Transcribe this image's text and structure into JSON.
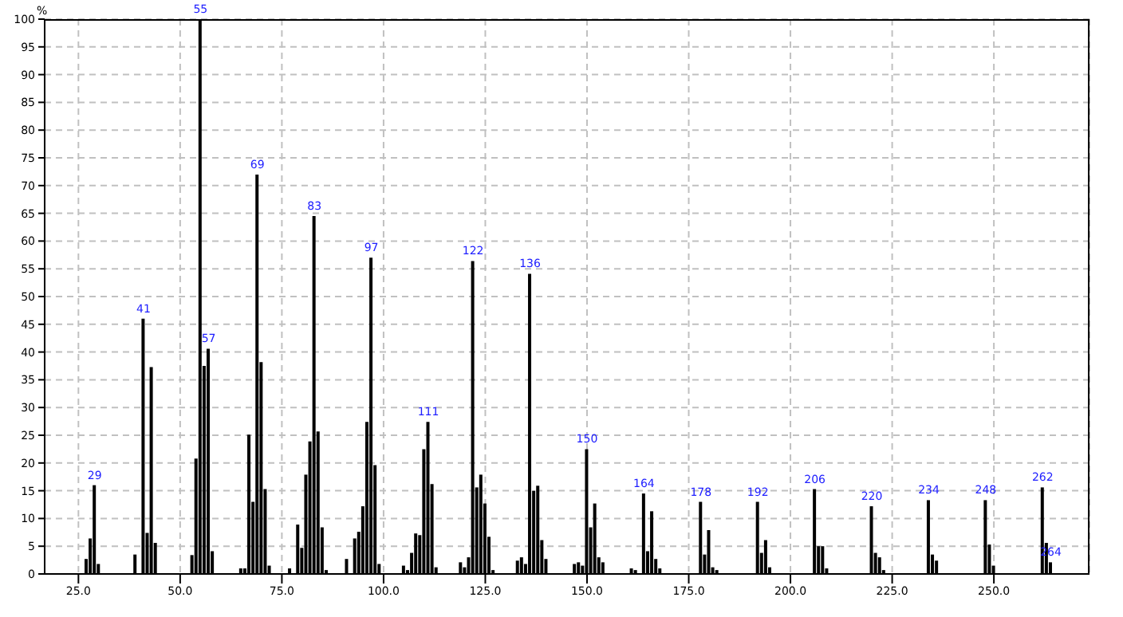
{
  "chart_data": {
    "type": "bar",
    "ylabel": "%",
    "x": [
      27,
      28,
      29,
      30,
      39,
      41,
      42,
      43,
      44,
      53,
      54,
      55,
      56,
      57,
      58,
      65,
      66,
      67,
      68,
      69,
      70,
      71,
      72,
      77,
      79,
      80,
      81,
      82,
      83,
      84,
      85,
      86,
      91,
      93,
      94,
      95,
      96,
      97,
      98,
      99,
      105,
      106,
      107,
      108,
      109,
      110,
      111,
      112,
      113,
      119,
      120,
      121,
      122,
      123,
      124,
      125,
      126,
      127,
      133,
      134,
      135,
      136,
      137,
      138,
      139,
      140,
      147,
      148,
      149,
      150,
      151,
      152,
      153,
      154,
      161,
      162,
      164,
      165,
      166,
      167,
      168,
      178,
      179,
      180,
      181,
      182,
      192,
      193,
      194,
      195,
      206,
      207,
      208,
      209,
      220,
      221,
      222,
      223,
      234,
      235,
      236,
      248,
      249,
      250,
      262,
      263,
      264
    ],
    "series": [
      {
        "color": "#000000",
        "values": [
          2.7,
          6.4,
          16,
          1.8,
          3.5,
          46,
          7.4,
          37.3,
          5.6,
          3.4,
          20.8,
          100,
          37.5,
          40.6,
          4.1,
          1,
          1,
          25.1,
          13,
          72,
          38.2,
          15.3,
          1.5,
          1,
          8.9,
          4.7,
          17.9,
          23.9,
          64.5,
          25.7,
          8.4,
          0.7,
          2.7,
          6.4,
          7.6,
          12.2,
          27.4,
          57,
          19.6,
          1.8,
          1.5,
          0.7,
          3.8,
          7.3,
          7,
          22.5,
          27.4,
          16.2,
          1.2,
          2.1,
          1.2,
          3,
          56.4,
          15.6,
          17.9,
          12.7,
          6.7,
          0.7,
          2.4,
          3,
          1.8,
          54.1,
          15,
          15.9,
          6.1,
          2.7,
          1.8,
          2.1,
          1.5,
          22.5,
          8.4,
          12.7,
          3,
          2.1,
          1,
          0.7,
          14.5,
          4.1,
          11.3,
          2.7,
          1,
          13,
          3.5,
          7.9,
          1.2,
          0.7,
          13,
          3.8,
          6.1,
          1.2,
          15.3,
          5,
          5,
          1,
          12.2,
          3.8,
          3,
          0.7,
          13.3,
          3.5,
          2.4,
          13.3,
          5.3,
          1.5,
          15.6,
          5.6,
          2.1
        ]
      }
    ],
    "xlim": [
      16.7,
      273.5
    ],
    "xticks": [
      {
        "value": 25,
        "label": "25.0"
      },
      {
        "value": 50,
        "label": "50.0"
      },
      {
        "value": 75,
        "label": "75.0"
      },
      {
        "value": 100,
        "label": "100.0"
      },
      {
        "value": 125,
        "label": "125.0"
      },
      {
        "value": 150,
        "label": "150.0"
      },
      {
        "value": 175,
        "label": "175.0"
      },
      {
        "value": 200,
        "label": "200.0"
      },
      {
        "value": 225,
        "label": "225.0"
      },
      {
        "value": 250,
        "label": "250.0"
      }
    ],
    "ylim": [
      0,
      100
    ],
    "yticks": [
      0,
      5,
      10,
      15,
      20,
      25,
      30,
      35,
      40,
      45,
      50,
      55,
      60,
      65,
      70,
      75,
      80,
      85,
      90,
      95,
      100
    ],
    "grid": true,
    "legend": false,
    "annotations": [
      {
        "text": "29",
        "x": 29,
        "y": 16
      },
      {
        "text": "41",
        "x": 41,
        "y": 46
      },
      {
        "text": "55",
        "x": 55,
        "y": 100
      },
      {
        "text": "57",
        "x": 57,
        "y": 40.6
      },
      {
        "text": "69",
        "x": 69,
        "y": 72
      },
      {
        "text": "83",
        "x": 83,
        "y": 64.5
      },
      {
        "text": "97",
        "x": 97,
        "y": 57
      },
      {
        "text": "111",
        "x": 111,
        "y": 27.4
      },
      {
        "text": "122",
        "x": 122,
        "y": 56.4
      },
      {
        "text": "136",
        "x": 136,
        "y": 54.1
      },
      {
        "text": "150",
        "x": 150,
        "y": 22.5
      },
      {
        "text": "164",
        "x": 164,
        "y": 14.5
      },
      {
        "text": "178",
        "x": 178,
        "y": 13
      },
      {
        "text": "192",
        "x": 192,
        "y": 13
      },
      {
        "text": "206",
        "x": 206,
        "y": 15.3
      },
      {
        "text": "220",
        "x": 220,
        "y": 12.2
      },
      {
        "text": "234",
        "x": 234,
        "y": 13.3
      },
      {
        "text": "248",
        "x": 248,
        "y": 13.3
      },
      {
        "text": "262",
        "x": 262,
        "y": 15.6
      },
      {
        "text": "264",
        "x": 264,
        "y": 2.1
      }
    ]
  }
}
